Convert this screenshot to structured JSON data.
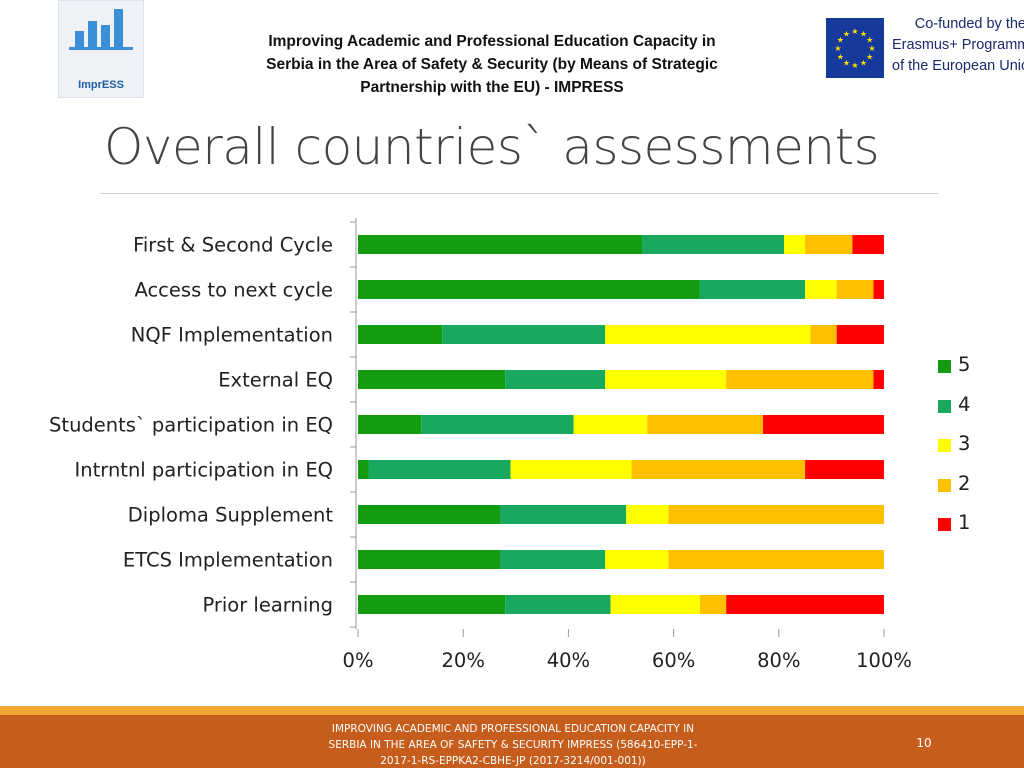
{
  "header": {
    "logo_text": "ImprESS",
    "project_lines": [
      "Improving Academic and Professional Education Capacity in",
      "Serbia in the Area of Safety & Security (by Means of Strategic",
      "Partnership with the EU) - IMPRESS"
    ],
    "eu_lines": [
      "Co-funded by the",
      "Erasmus+ Programme",
      "of the European Union"
    ]
  },
  "title": "Overall countries` assessments",
  "chart_data": {
    "type": "bar",
    "orientation": "horizontal",
    "stacked": "100%",
    "categories": [
      "First & Second Cycle",
      "Access to next cycle",
      "NQF Implementation",
      "External EQ",
      "Students` participation in EQ",
      "Intrntnl participation in EQ",
      "Diploma Supplement",
      "ETCS Implementation",
      "Prior learning"
    ],
    "series": [
      {
        "name": "5",
        "color": "#119c11",
        "values": [
          54,
          65,
          16,
          28,
          12,
          2,
          27,
          27,
          28
        ]
      },
      {
        "name": "4",
        "color": "#19a860",
        "values": [
          27,
          20,
          31,
          19,
          29,
          27,
          24,
          20,
          20
        ]
      },
      {
        "name": "3",
        "color": "#ffff00",
        "values": [
          4,
          6,
          39,
          23,
          14,
          23,
          8,
          12,
          17
        ]
      },
      {
        "name": "2",
        "color": "#ffc000",
        "values": [
          9,
          7,
          5,
          28,
          22,
          33,
          41,
          41,
          5
        ]
      },
      {
        "name": "1",
        "color": "#ff0000",
        "values": [
          6,
          2,
          9,
          2,
          23,
          15,
          0,
          0,
          30
        ]
      }
    ],
    "xlim": [
      0,
      100
    ],
    "x_ticks": [
      "0%",
      "20%",
      "40%",
      "60%",
      "80%",
      "100%"
    ],
    "legend_order": [
      "5",
      "4",
      "3",
      "2",
      "1"
    ],
    "legend_position": "right",
    "grid": false
  },
  "footer": {
    "lines": [
      "IMPROVING ACADEMIC AND PROFESSIONAL EDUCATION CAPACITY IN",
      "SERBIA IN THE AREA OF SAFETY & SECURITY IMPRESS  (586410-EPP-1-",
      "2017-1-RS-EPPKA2-CBHE-JP (2017-3214/001-001))"
    ],
    "page_number": "10"
  }
}
